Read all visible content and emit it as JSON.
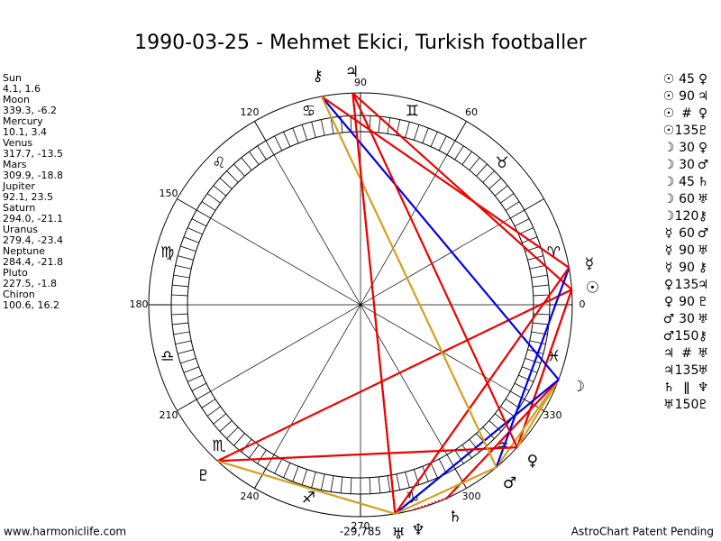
{
  "title": "1990-03-25 - Mehmet Ekici, Turkish footballer",
  "planets": [
    {
      "name": "Sun",
      "position": "4.1, 1.6",
      "glyph": "☉"
    },
    {
      "name": "Moon",
      "position": "339.3, -6.2",
      "glyph": "☽"
    },
    {
      "name": "Mercury",
      "position": "10.1, 3.4",
      "glyph": "☿"
    },
    {
      "name": "Venus",
      "position": "317.7, -13.5",
      "glyph": "♀"
    },
    {
      "name": "Mars",
      "position": "309.9, -18.8",
      "glyph": "♂"
    },
    {
      "name": "Jupiter",
      "position": "92.1, 23.5",
      "glyph": "♃"
    },
    {
      "name": "Saturn",
      "position": "294.0, -21.1",
      "glyph": "♄"
    },
    {
      "name": "Uranus",
      "position": "279.4, -23.4",
      "glyph": "♅"
    },
    {
      "name": "Neptune",
      "position": "284.4, -21.8",
      "glyph": "♆"
    },
    {
      "name": "Pluto",
      "position": "227.5, -1.8",
      "glyph": "♇"
    },
    {
      "name": "Chiron",
      "position": "100.6, 16.2",
      "glyph": "⚷"
    }
  ],
  "aspects": [
    [
      "☉",
      "45",
      "♀"
    ],
    [
      "☉",
      "90",
      "♃"
    ],
    [
      "☉",
      "#",
      "♀"
    ],
    [
      "☉",
      "135",
      "♇"
    ],
    [
      "☽",
      "30",
      "♀"
    ],
    [
      "☽",
      "30",
      "♂"
    ],
    [
      "☽",
      "45",
      "♄"
    ],
    [
      "☽",
      "60",
      "♅"
    ],
    [
      "☽",
      "120",
      "⚷"
    ],
    [
      "☿",
      "60",
      "♂"
    ],
    [
      "☿",
      "90",
      "♅"
    ],
    [
      "☿",
      "90",
      "⚷"
    ],
    [
      "♀",
      "135",
      "♃"
    ],
    [
      "♀",
      "90",
      "♇"
    ],
    [
      "♂",
      "30",
      "♅"
    ],
    [
      "♂",
      "150",
      "⚷"
    ],
    [
      "♃",
      "#",
      "♅"
    ],
    [
      "♃",
      "135",
      "♅"
    ],
    [
      "♄",
      "ǁ",
      "♆"
    ],
    [
      "♅",
      "150",
      "♇"
    ]
  ],
  "signs": [
    "♈",
    "♉",
    "♊",
    "♋",
    "♌",
    "♍",
    "♎",
    "♏",
    "♐",
    "♑",
    "♒",
    "♓"
  ],
  "degree_labels": [
    "0",
    "60",
    "90",
    "120",
    "150",
    "180",
    "210",
    "240",
    "270",
    "300",
    "330"
  ],
  "footer": {
    "left": "www.harmoniclife.com",
    "center": "-29,785",
    "right": "AstroChart Patent Pending"
  }
}
